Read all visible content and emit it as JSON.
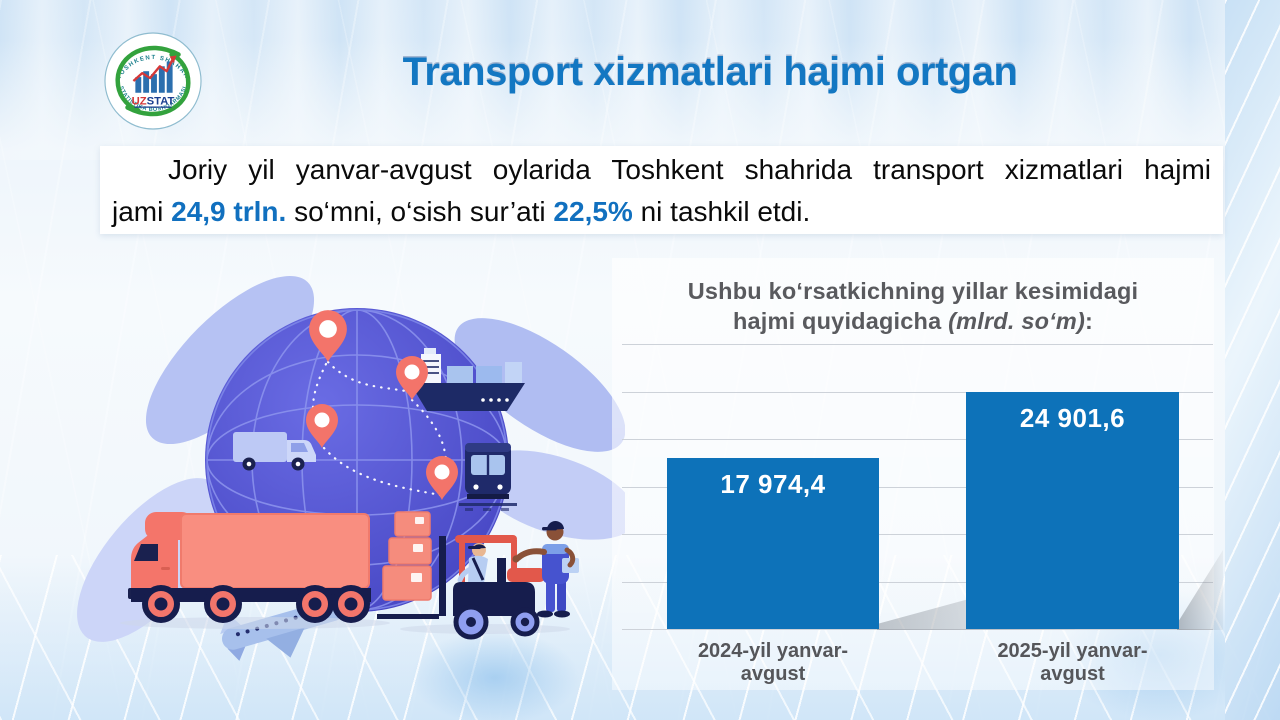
{
  "header": {
    "title": "Transport xizmatlari hajmi ortgan"
  },
  "logo": {
    "arc_top": "TOSHKENT SHAHAR",
    "arc_bottom": "STATISTIKA BOSHQARMASI",
    "name_red": "UZ",
    "name_blue": "STAT"
  },
  "paragraph": {
    "line1": "Joriy yil yanvar-avgust oylarida Toshkent shahrida transport xizmatlari hajmi",
    "line2_start": "jami",
    "highlight1": "24,9 trln.",
    "line2_mid": "so‘mni, o‘sish sur’ati",
    "highlight2": "22,5%",
    "line2_end": "ni tashkil etdi."
  },
  "chart_data": {
    "type": "bar",
    "title": "Ushbu ko‘rsatkichning yillar kesimidagi hajmi quyidagicha (mlrd. so‘m):",
    "title_line1": "Ushbu ko‘rsatkichning yillar kesimidagi",
    "title_line2_main": "hajmi quyidagicha",
    "title_line2_italic": "(mlrd. so‘m)",
    "title_line2_suffix": ":",
    "categories": [
      "2024-yil yanvar-avgust",
      "2025-yil yanvar-avgust"
    ],
    "values": [
      17974.4,
      24901.6
    ],
    "value_labels": [
      "17 974,4",
      "24 901,6"
    ],
    "ylim": [
      0,
      30000
    ],
    "gridline_step": 5000,
    "grid": "horizontal",
    "legend": "none",
    "bar_color": "#0d72b9",
    "label_color": "#ffffff"
  },
  "colors": {
    "title_blue": "#1377c2",
    "highlight_blue": "#1170bf",
    "axis_text": "#55565a",
    "bar_blue": "#0d72b9",
    "grid_gray": "#cdd2d9"
  }
}
